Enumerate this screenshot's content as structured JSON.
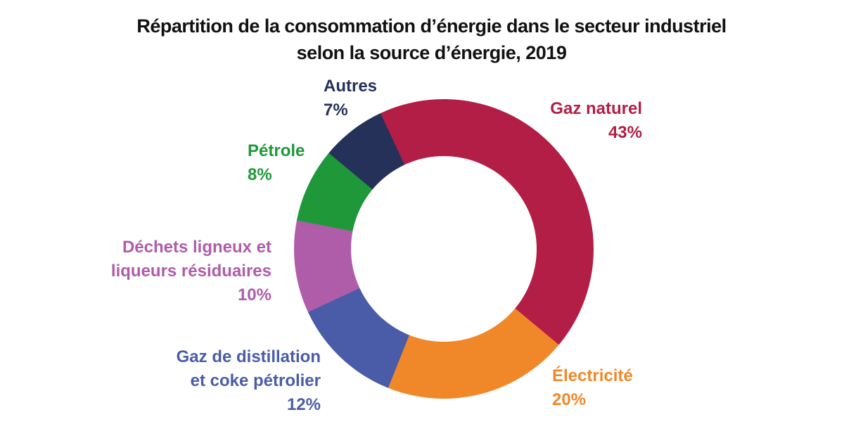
{
  "chart_data": {
    "type": "pie",
    "donut": true,
    "title": "Répartition de la consommation d’énergie dans le secteur industriel selon la source d’énergie, 2019",
    "title_lines": [
      "Répartition de la consommation d’énergie dans le secteur industriel",
      "selon la source d’énergie, 2019"
    ],
    "start_angle_deg": -25,
    "inner_radius_ratio": 0.62,
    "legend_position": "outside-callout-labels",
    "slices": [
      {
        "name": "Gaz naturel",
        "label_lines": [
          "Gaz naturel"
        ],
        "value_pct": 43,
        "pct_label": "43%",
        "color": "#B21E45"
      },
      {
        "name": "Électricité",
        "label_lines": [
          "Électricité"
        ],
        "value_pct": 20,
        "pct_label": "20%",
        "color": "#F0882A"
      },
      {
        "name": "Gaz de distillation et coke pétrolier",
        "label_lines": [
          "Gaz de distillation",
          "et coke pétrolier"
        ],
        "value_pct": 12,
        "pct_label": "12%",
        "color": "#4A5CA8"
      },
      {
        "name": "Déchets ligneux et liqueurs résiduaires",
        "label_lines": [
          "Déchets ligneux et",
          "liqueurs résiduaires"
        ],
        "value_pct": 10,
        "pct_label": "10%",
        "color": "#AF5CA9"
      },
      {
        "name": "Pétrole",
        "label_lines": [
          "Pétrole"
        ],
        "value_pct": 8,
        "pct_label": "8%",
        "color": "#1F9839"
      },
      {
        "name": "Autres",
        "label_lines": [
          "Autres"
        ],
        "value_pct": 7,
        "pct_label": "7%",
        "color": "#263159"
      }
    ]
  }
}
